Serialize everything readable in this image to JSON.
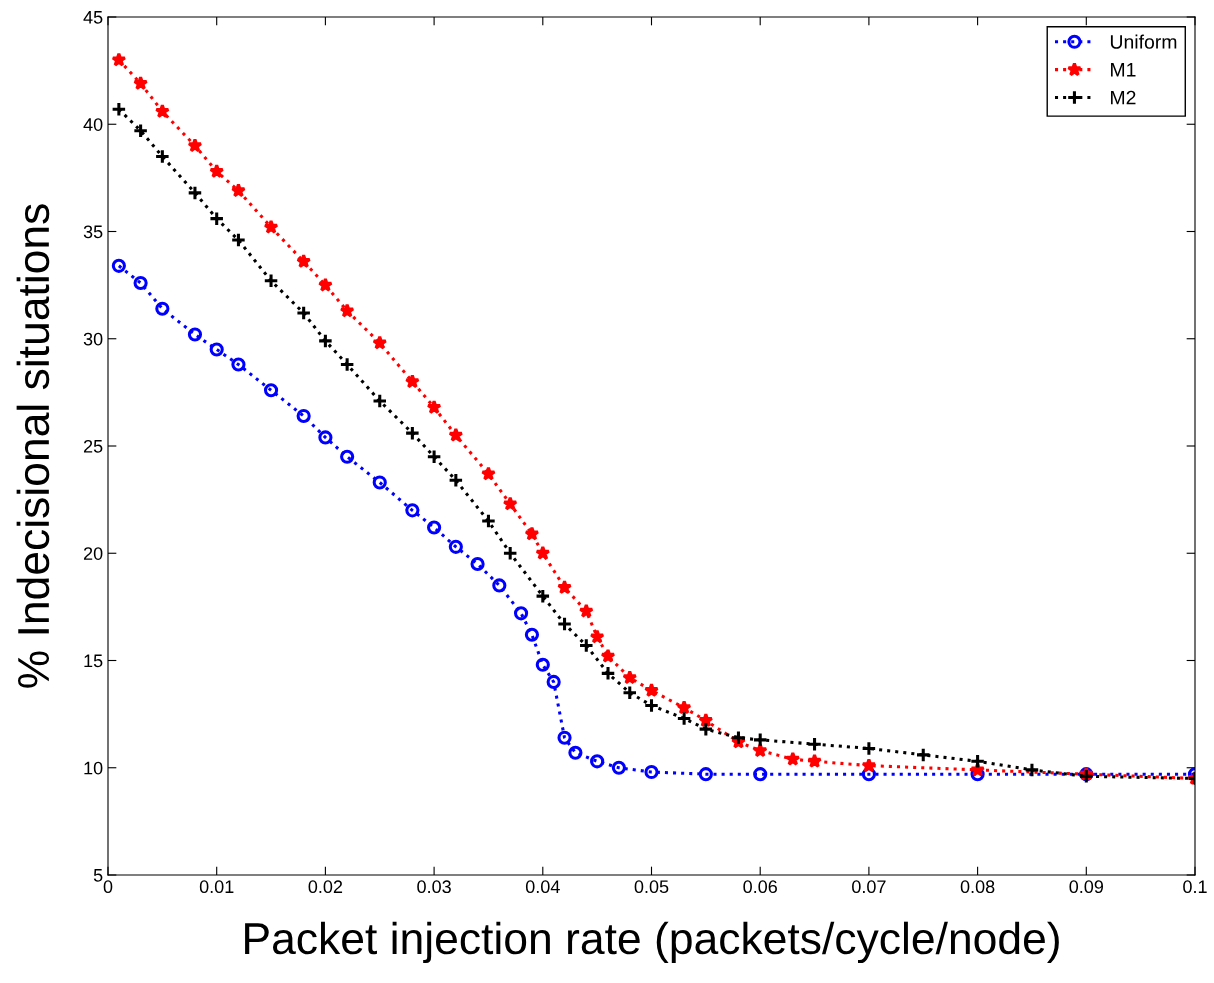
{
  "chart_data": {
    "type": "line",
    "xlabel": "Packet injection rate (packets/cycle/node)",
    "ylabel": "% Indecisional situations",
    "xlim": [
      0,
      0.1
    ],
    "ylim": [
      5,
      45
    ],
    "xticks": [
      0,
      0.01,
      0.02,
      0.03,
      0.04,
      0.05,
      0.06,
      0.07,
      0.08,
      0.09,
      0.1
    ],
    "yticks": [
      5,
      10,
      15,
      20,
      25,
      30,
      35,
      40,
      45
    ],
    "grid": false,
    "legend": "top right",
    "line_style": "dotted",
    "series": [
      {
        "name": "Uniform",
        "color": "#0000ff",
        "marker": "circle",
        "x": [
          0.001,
          0.003,
          0.005,
          0.008,
          0.01,
          0.012,
          0.015,
          0.018,
          0.02,
          0.022,
          0.025,
          0.028,
          0.03,
          0.032,
          0.034,
          0.036,
          0.038,
          0.039,
          0.04,
          0.041,
          0.042,
          0.043,
          0.045,
          0.047,
          0.05,
          0.055,
          0.06,
          0.07,
          0.08,
          0.09,
          0.1
        ],
        "values": [
          33.4,
          32.6,
          31.4,
          30.2,
          29.5,
          28.8,
          27.6,
          26.4,
          25.4,
          24.5,
          23.3,
          22.0,
          21.2,
          20.3,
          19.5,
          18.5,
          17.2,
          16.2,
          14.8,
          14.0,
          11.4,
          10.7,
          10.3,
          10.0,
          9.8,
          9.7,
          9.7,
          9.7,
          9.7,
          9.7,
          9.7
        ]
      },
      {
        "name": "M1",
        "color": "#ff0000",
        "marker": "star",
        "x": [
          0.001,
          0.003,
          0.005,
          0.008,
          0.01,
          0.012,
          0.015,
          0.018,
          0.02,
          0.022,
          0.025,
          0.028,
          0.03,
          0.032,
          0.035,
          0.037,
          0.039,
          0.04,
          0.042,
          0.044,
          0.045,
          0.046,
          0.048,
          0.05,
          0.053,
          0.055,
          0.058,
          0.06,
          0.063,
          0.065,
          0.07,
          0.08,
          0.09,
          0.1
        ],
        "values": [
          43.0,
          41.9,
          40.6,
          39.0,
          37.8,
          36.9,
          35.2,
          33.6,
          32.5,
          31.3,
          29.8,
          28.0,
          26.8,
          25.5,
          23.7,
          22.3,
          20.9,
          20.0,
          18.4,
          17.3,
          16.1,
          15.2,
          14.2,
          13.6,
          12.8,
          12.2,
          11.2,
          10.8,
          10.4,
          10.3,
          10.1,
          9.9,
          9.7,
          9.5
        ]
      },
      {
        "name": "M2",
        "color": "#000000",
        "marker": "cross",
        "x": [
          0.001,
          0.003,
          0.005,
          0.008,
          0.01,
          0.012,
          0.015,
          0.018,
          0.02,
          0.022,
          0.025,
          0.028,
          0.03,
          0.032,
          0.035,
          0.037,
          0.04,
          0.042,
          0.044,
          0.046,
          0.048,
          0.05,
          0.053,
          0.055,
          0.058,
          0.06,
          0.065,
          0.07,
          0.075,
          0.08,
          0.085,
          0.09,
          0.1
        ],
        "values": [
          40.7,
          39.7,
          38.5,
          36.8,
          35.6,
          34.6,
          32.7,
          31.2,
          29.9,
          28.8,
          27.1,
          25.6,
          24.5,
          23.4,
          21.5,
          20.0,
          18.0,
          16.7,
          15.7,
          14.4,
          13.5,
          12.9,
          12.3,
          11.8,
          11.4,
          11.3,
          11.1,
          10.9,
          10.6,
          10.3,
          9.9,
          9.6,
          9.5
        ]
      }
    ]
  }
}
